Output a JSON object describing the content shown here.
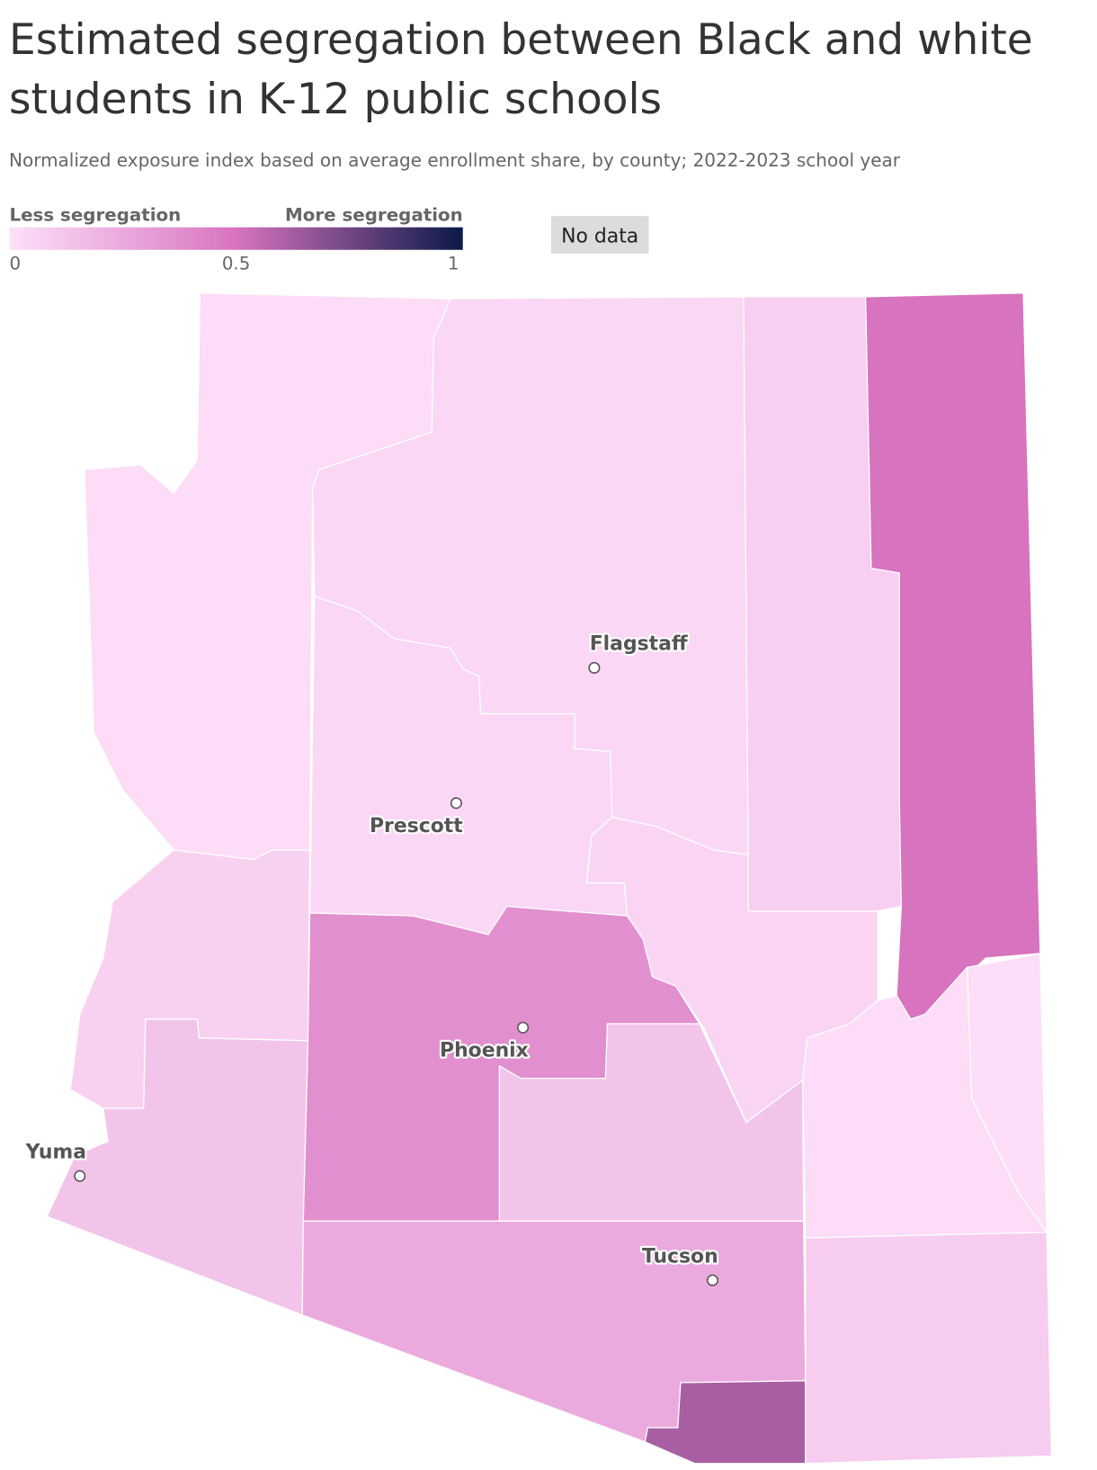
{
  "chart_data": {
    "type": "choropleth",
    "title": "Estimated segregation between Black and white students in K-12 public schools",
    "subtitle": "Normalized exposure index based on average enrollment share, by county; 2022-2023 school year",
    "legend": {
      "min_label": "Less segregation",
      "max_label": "More segregation",
      "no_data_label": "No data",
      "range": [
        0,
        1
      ],
      "ticks": [
        0,
        0.5,
        1
      ],
      "colors": [
        "#fde0f9",
        "#d873c0",
        "#0b1a48"
      ],
      "no_data_color": "#dcdcdc"
    },
    "values": [
      0.02,
      0.04,
      0.08,
      0.5,
      0.04,
      0.05,
      0.07,
      0.37,
      0.13,
      0.13,
      0.01,
      0.02,
      0.25,
      0.62,
      0.09
    ],
    "cities": [
      "Flagstaff",
      "Prescott",
      "Phoenix",
      "Yuma",
      "Tucson"
    ]
  }
}
